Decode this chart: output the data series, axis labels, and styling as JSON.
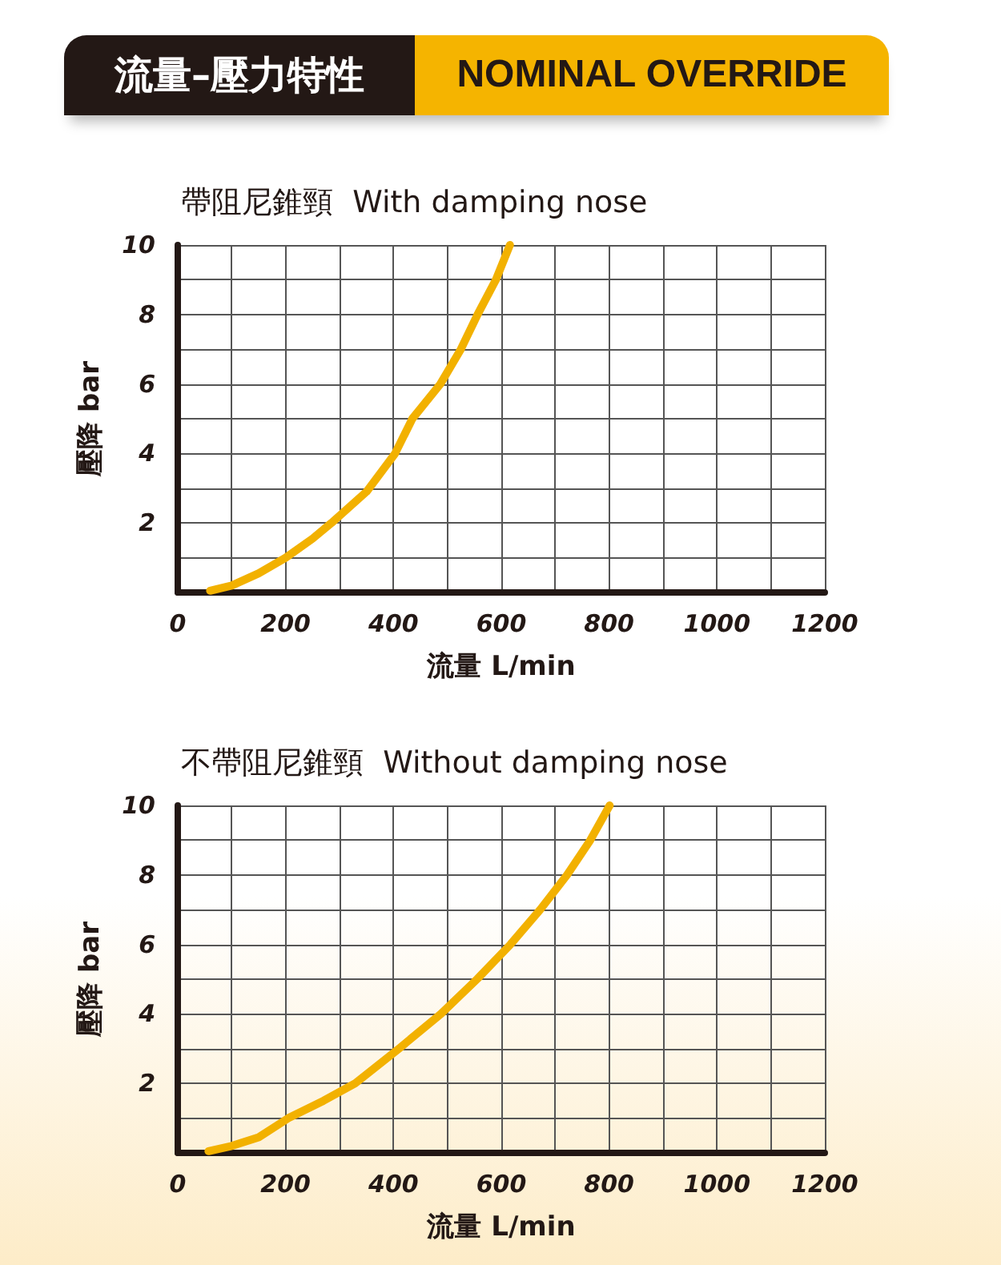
{
  "chart_data": [
    {
      "type": "line",
      "title": "帶阻尼錐頸  With damping nose",
      "xlabel": "流量 L/min",
      "ylabel": "壓降 bar",
      "annotations": [
        "流量–壓力特性",
        "NOMINAL OVERRIDE"
      ],
      "series": [
        {
          "color": "#f2b100",
          "x": [
            60,
            100,
            150,
            200,
            250,
            285,
            350,
            403,
            435,
            487,
            525,
            556,
            590,
            616
          ],
          "values": [
            0.05,
            0.2,
            0.55,
            1,
            1.55,
            2,
            2.9,
            4,
            5,
            6,
            7,
            8,
            9,
            10
          ]
        }
      ],
      "xlim": [
        0,
        1200
      ],
      "xticks": [
        0,
        {
          "value": 100,
          "label": null
        },
        200,
        {
          "value": 300,
          "label": null
        },
        400,
        {
          "value": 500,
          "label": null
        },
        600,
        {
          "value": 700,
          "label": null
        },
        800,
        {
          "value": 900,
          "label": null
        },
        1000,
        {
          "value": 1100,
          "label": null
        },
        1200
      ],
      "ylim": [
        0,
        10
      ],
      "yticks": [
        {
          "value": 0,
          "label": null
        },
        {
          "value": 1,
          "label": null
        },
        2,
        {
          "value": 3,
          "label": null
        },
        4,
        {
          "value": 5,
          "label": null
        },
        6,
        {
          "value": 7,
          "label": null
        },
        8,
        {
          "value": 9,
          "label": null
        },
        10
      ],
      "grid": true,
      "marker": "none",
      "line_style": "solid"
    },
    {
      "type": "line",
      "title": "不帶阻尼錐頸  Without damping nose",
      "xlabel": "流量 L/min",
      "ylabel": "壓降 bar",
      "series": [
        {
          "color": "#f2b100",
          "x": [
            57,
            100,
            150,
            205,
            270,
            329,
            410,
            488,
            555,
            617,
            672,
            722,
            765,
            801
          ],
          "values": [
            0.05,
            0.2,
            0.45,
            1,
            1.5,
            2,
            3,
            4,
            5,
            6,
            7,
            8,
            9,
            10
          ]
        }
      ],
      "xlim": [
        0,
        1200
      ],
      "xticks": [
        0,
        {
          "value": 100,
          "label": null
        },
        200,
        {
          "value": 300,
          "label": null
        },
        400,
        {
          "value": 500,
          "label": null
        },
        600,
        {
          "value": 700,
          "label": null
        },
        800,
        {
          "value": 900,
          "label": null
        },
        1000,
        {
          "value": 1100,
          "label": null
        },
        1200
      ],
      "ylim": [
        0,
        10
      ],
      "yticks": [
        {
          "value": 0,
          "label": null
        },
        {
          "value": 1,
          "label": null
        },
        2,
        {
          "value": 3,
          "label": null
        },
        4,
        {
          "value": 5,
          "label": null
        },
        6,
        {
          "value": 7,
          "label": null
        },
        8,
        {
          "value": 9,
          "label": null
        },
        10
      ],
      "grid": true,
      "marker": "none",
      "line_style": "solid"
    }
  ]
}
